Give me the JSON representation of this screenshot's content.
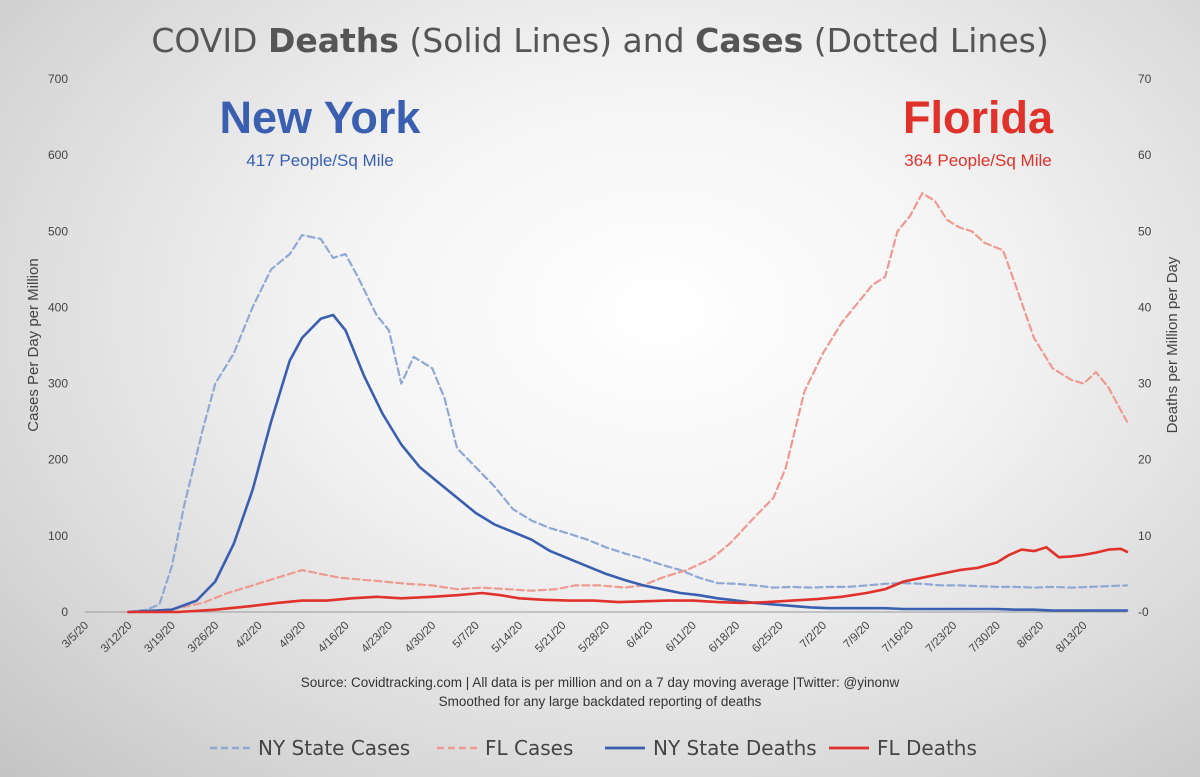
{
  "chart_data": {
    "type": "line",
    "title": {
      "prefix": "COVID ",
      "bold1": "Deaths",
      "middle": " (Solid Lines) and ",
      "bold2": "Cases",
      "suffix": " (Dotted Lines)"
    },
    "annotations": {
      "ny_name": "New York",
      "ny_density": "417 People/Sq Mile",
      "fl_name": "Florida",
      "fl_density": "364 People/Sq Mile"
    },
    "ylabel_left": "Cases Per Day per Million",
    "ylabel_right": "Deaths per Million per Day",
    "ylim_left": [
      0,
      700
    ],
    "ylim_right": [
      0,
      70
    ],
    "yticks_left": [
      "0",
      "100",
      "200",
      "300",
      "400",
      "500",
      "600",
      "700"
    ],
    "yticks_right": [
      "-0",
      "10",
      "20",
      "30",
      "40",
      "50",
      "60",
      "70"
    ],
    "x_start_date": "2020-03-05",
    "x_end_date": "2020-08-20",
    "xticks": [
      "3/5/20",
      "3/12/20",
      "3/19/20",
      "3/26/20",
      "4/2/20",
      "4/9/20",
      "4/16/20",
      "4/23/20",
      "4/30/20",
      "5/7/20",
      "5/14/20",
      "5/21/20",
      "5/28/20",
      "6/4/20",
      "6/11/20",
      "6/18/20",
      "6/25/20",
      "7/2/20",
      "7/9/20",
      "7/16/20",
      "7/23/20",
      "7/30/20",
      "8/6/20",
      "8/13/20"
    ],
    "source_line1": "Source: Covidtracking.com | All data is per million and on a 7 day moving average |Twitter: @yinonw",
    "source_line2": "Smoothed for any large backdated reporting of deaths",
    "colors": {
      "ny": "#3a5fb0",
      "ny_light": "#8fa8d4",
      "fl": "#e0312a",
      "fl_light": "#ee9a90"
    },
    "series": [
      {
        "name": "NY State Cases",
        "axis": "left",
        "style": "dashed",
        "color": "#8fa8d4",
        "points": [
          [
            "2020-03-12",
            0
          ],
          [
            "2020-03-15",
            3
          ],
          [
            "2020-03-17",
            10
          ],
          [
            "2020-03-19",
            60
          ],
          [
            "2020-03-21",
            140
          ],
          [
            "2020-03-24",
            240
          ],
          [
            "2020-03-26",
            300
          ],
          [
            "2020-03-29",
            340
          ],
          [
            "2020-04-01",
            400
          ],
          [
            "2020-04-04",
            450
          ],
          [
            "2020-04-07",
            470
          ],
          [
            "2020-04-09",
            495
          ],
          [
            "2020-04-12",
            490
          ],
          [
            "2020-04-14",
            465
          ],
          [
            "2020-04-16",
            470
          ],
          [
            "2020-04-18",
            440
          ],
          [
            "2020-04-21",
            390
          ],
          [
            "2020-04-23",
            370
          ],
          [
            "2020-04-25",
            300
          ],
          [
            "2020-04-27",
            335
          ],
          [
            "2020-04-30",
            320
          ],
          [
            "2020-05-02",
            280
          ],
          [
            "2020-05-04",
            215
          ],
          [
            "2020-05-07",
            190
          ],
          [
            "2020-05-10",
            165
          ],
          [
            "2020-05-13",
            135
          ],
          [
            "2020-05-16",
            120
          ],
          [
            "2020-05-19",
            110
          ],
          [
            "2020-05-22",
            103
          ],
          [
            "2020-05-25",
            95
          ],
          [
            "2020-05-28",
            85
          ],
          [
            "2020-05-31",
            77
          ],
          [
            "2020-06-03",
            70
          ],
          [
            "2020-06-06",
            62
          ],
          [
            "2020-06-09",
            55
          ],
          [
            "2020-06-12",
            45
          ],
          [
            "2020-06-15",
            38
          ],
          [
            "2020-06-18",
            37
          ],
          [
            "2020-06-21",
            35
          ],
          [
            "2020-06-24",
            32
          ],
          [
            "2020-06-27",
            33
          ],
          [
            "2020-06-30",
            32
          ],
          [
            "2020-07-03",
            33
          ],
          [
            "2020-07-06",
            33
          ],
          [
            "2020-07-09",
            35
          ],
          [
            "2020-07-12",
            37
          ],
          [
            "2020-07-15",
            38
          ],
          [
            "2020-07-18",
            37
          ],
          [
            "2020-07-21",
            35
          ],
          [
            "2020-07-24",
            35
          ],
          [
            "2020-07-27",
            34
          ],
          [
            "2020-07-30",
            33
          ],
          [
            "2020-08-02",
            33
          ],
          [
            "2020-08-05",
            32
          ],
          [
            "2020-08-08",
            33
          ],
          [
            "2020-08-11",
            32
          ],
          [
            "2020-08-14",
            33
          ],
          [
            "2020-08-17",
            34
          ],
          [
            "2020-08-20",
            35
          ]
        ]
      },
      {
        "name": "FL Cases",
        "axis": "left",
        "style": "dashed",
        "color": "#ee9a90",
        "points": [
          [
            "2020-03-12",
            0
          ],
          [
            "2020-03-17",
            2
          ],
          [
            "2020-03-20",
            5
          ],
          [
            "2020-03-24",
            12
          ],
          [
            "2020-03-28",
            25
          ],
          [
            "2020-04-01",
            35
          ],
          [
            "2020-04-05",
            45
          ],
          [
            "2020-04-09",
            55
          ],
          [
            "2020-04-12",
            50
          ],
          [
            "2020-04-15",
            45
          ],
          [
            "2020-04-18",
            43
          ],
          [
            "2020-04-22",
            40
          ],
          [
            "2020-04-26",
            37
          ],
          [
            "2020-04-30",
            35
          ],
          [
            "2020-05-04",
            30
          ],
          [
            "2020-05-08",
            32
          ],
          [
            "2020-05-12",
            30
          ],
          [
            "2020-05-16",
            28
          ],
          [
            "2020-05-20",
            30
          ],
          [
            "2020-05-23",
            35
          ],
          [
            "2020-05-27",
            35
          ],
          [
            "2020-05-31",
            32
          ],
          [
            "2020-06-03",
            35
          ],
          [
            "2020-06-06",
            45
          ],
          [
            "2020-06-10",
            55
          ],
          [
            "2020-06-14",
            70
          ],
          [
            "2020-06-17",
            90
          ],
          [
            "2020-06-21",
            125
          ],
          [
            "2020-06-24",
            150
          ],
          [
            "2020-06-26",
            190
          ],
          [
            "2020-06-29",
            290
          ],
          [
            "2020-07-02",
            340
          ],
          [
            "2020-07-05",
            380
          ],
          [
            "2020-07-08",
            410
          ],
          [
            "2020-07-10",
            430
          ],
          [
            "2020-07-12",
            440
          ],
          [
            "2020-07-14",
            500
          ],
          [
            "2020-07-16",
            520
          ],
          [
            "2020-07-18",
            550
          ],
          [
            "2020-07-20",
            540
          ],
          [
            "2020-07-22",
            515
          ],
          [
            "2020-07-24",
            505
          ],
          [
            "2020-07-26",
            500
          ],
          [
            "2020-07-28",
            485
          ],
          [
            "2020-07-31",
            475
          ],
          [
            "2020-08-02",
            430
          ],
          [
            "2020-08-05",
            360
          ],
          [
            "2020-08-08",
            320
          ],
          [
            "2020-08-11",
            305
          ],
          [
            "2020-08-13",
            300
          ],
          [
            "2020-08-15",
            315
          ],
          [
            "2020-08-17",
            295
          ],
          [
            "2020-08-20",
            250
          ]
        ]
      },
      {
        "name": "NY State Deaths",
        "axis": "right",
        "style": "solid",
        "color": "#3a5fb0",
        "points": [
          [
            "2020-03-12",
            0
          ],
          [
            "2020-03-19",
            0.3
          ],
          [
            "2020-03-23",
            1.5
          ],
          [
            "2020-03-26",
            4
          ],
          [
            "2020-03-29",
            9
          ],
          [
            "2020-04-01",
            16
          ],
          [
            "2020-04-04",
            25
          ],
          [
            "2020-04-07",
            33
          ],
          [
            "2020-04-09",
            36
          ],
          [
            "2020-04-12",
            38.5
          ],
          [
            "2020-04-14",
            39
          ],
          [
            "2020-04-16",
            37
          ],
          [
            "2020-04-19",
            31
          ],
          [
            "2020-04-22",
            26
          ],
          [
            "2020-04-25",
            22
          ],
          [
            "2020-04-28",
            19
          ],
          [
            "2020-05-01",
            17
          ],
          [
            "2020-05-04",
            15
          ],
          [
            "2020-05-07",
            13
          ],
          [
            "2020-05-10",
            11.5
          ],
          [
            "2020-05-13",
            10.5
          ],
          [
            "2020-05-16",
            9.5
          ],
          [
            "2020-05-19",
            8
          ],
          [
            "2020-05-22",
            7
          ],
          [
            "2020-05-25",
            6
          ],
          [
            "2020-05-28",
            5
          ],
          [
            "2020-05-31",
            4.2
          ],
          [
            "2020-06-03",
            3.5
          ],
          [
            "2020-06-06",
            3
          ],
          [
            "2020-06-09",
            2.5
          ],
          [
            "2020-06-12",
            2.2
          ],
          [
            "2020-06-15",
            1.8
          ],
          [
            "2020-06-18",
            1.5
          ],
          [
            "2020-06-21",
            1.2
          ],
          [
            "2020-06-24",
            1
          ],
          [
            "2020-06-27",
            0.8
          ],
          [
            "2020-06-30",
            0.6
          ],
          [
            "2020-07-03",
            0.5
          ],
          [
            "2020-07-06",
            0.5
          ],
          [
            "2020-07-09",
            0.5
          ],
          [
            "2020-07-12",
            0.5
          ],
          [
            "2020-07-15",
            0.4
          ],
          [
            "2020-07-18",
            0.4
          ],
          [
            "2020-07-21",
            0.4
          ],
          [
            "2020-07-24",
            0.4
          ],
          [
            "2020-07-27",
            0.4
          ],
          [
            "2020-07-30",
            0.4
          ],
          [
            "2020-08-02",
            0.3
          ],
          [
            "2020-08-05",
            0.3
          ],
          [
            "2020-08-08",
            0.2
          ],
          [
            "2020-08-11",
            0.2
          ],
          [
            "2020-08-14",
            0.2
          ],
          [
            "2020-08-17",
            0.2
          ],
          [
            "2020-08-20",
            0.2
          ]
        ]
      },
      {
        "name": "FL Deaths",
        "axis": "right",
        "style": "solid",
        "color": "#e0312a",
        "points": [
          [
            "2020-03-12",
            0
          ],
          [
            "2020-03-20",
            0
          ],
          [
            "2020-03-26",
            0.3
          ],
          [
            "2020-04-01",
            0.8
          ],
          [
            "2020-04-05",
            1.2
          ],
          [
            "2020-04-09",
            1.5
          ],
          [
            "2020-04-13",
            1.5
          ],
          [
            "2020-04-17",
            1.8
          ],
          [
            "2020-04-21",
            2
          ],
          [
            "2020-04-25",
            1.8
          ],
          [
            "2020-04-30",
            2
          ],
          [
            "2020-05-04",
            2.2
          ],
          [
            "2020-05-08",
            2.5
          ],
          [
            "2020-05-11",
            2.2
          ],
          [
            "2020-05-14",
            1.8
          ],
          [
            "2020-05-18",
            1.6
          ],
          [
            "2020-05-22",
            1.5
          ],
          [
            "2020-05-26",
            1.5
          ],
          [
            "2020-05-30",
            1.3
          ],
          [
            "2020-06-03",
            1.4
          ],
          [
            "2020-06-07",
            1.5
          ],
          [
            "2020-06-11",
            1.5
          ],
          [
            "2020-06-15",
            1.3
          ],
          [
            "2020-06-19",
            1.2
          ],
          [
            "2020-06-23",
            1.3
          ],
          [
            "2020-06-27",
            1.5
          ],
          [
            "2020-07-01",
            1.7
          ],
          [
            "2020-07-05",
            2
          ],
          [
            "2020-07-09",
            2.5
          ],
          [
            "2020-07-12",
            3
          ],
          [
            "2020-07-15",
            4
          ],
          [
            "2020-07-18",
            4.5
          ],
          [
            "2020-07-21",
            5
          ],
          [
            "2020-07-24",
            5.5
          ],
          [
            "2020-07-27",
            5.8
          ],
          [
            "2020-07-30",
            6.5
          ],
          [
            "2020-08-01",
            7.5
          ],
          [
            "2020-08-03",
            8.2
          ],
          [
            "2020-08-05",
            8
          ],
          [
            "2020-08-07",
            8.5
          ],
          [
            "2020-08-09",
            7.2
          ],
          [
            "2020-08-11",
            7.3
          ],
          [
            "2020-08-13",
            7.5
          ],
          [
            "2020-08-15",
            7.8
          ],
          [
            "2020-08-17",
            8.2
          ],
          [
            "2020-08-19",
            8.3
          ],
          [
            "2020-08-20",
            7.9
          ]
        ]
      }
    ]
  }
}
